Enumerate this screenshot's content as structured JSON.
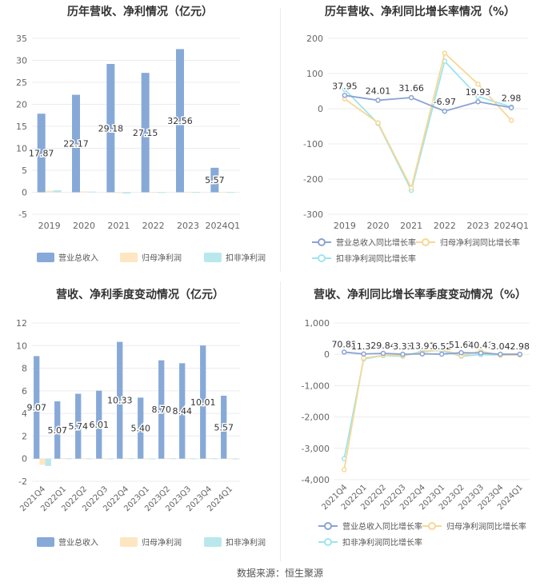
{
  "source": "数据来源：恒生聚源",
  "colors": {
    "revenue": "#87a9d7",
    "net_profit": "#fde6c1",
    "deducted": "#b9e8ec",
    "rev_line": "#8aa3d4",
    "np_line": "#f6d895",
    "ded_line": "#9ee5ee"
  },
  "chart_data": [
    {
      "type": "bar",
      "title": "历年营收、净利情况（亿元）",
      "categories": [
        "2019",
        "2020",
        "2021",
        "2022",
        "2023",
        "2024Q1"
      ],
      "ylim": [
        -5,
        35
      ],
      "yticks": [
        -5,
        0,
        5,
        10,
        15,
        20,
        25,
        30,
        35
      ],
      "series": [
        {
          "name": "营业总收入",
          "values": [
            17.87,
            22.17,
            29.18,
            27.15,
            32.56,
            5.57
          ],
          "labels": [
            "17.87",
            "22.17",
            "29.18",
            "27.15",
            "32.56",
            "5.57"
          ]
        },
        {
          "name": "归母净利润",
          "values": [
            0.35,
            0.2,
            -0.15,
            0.05,
            0.1,
            0.08
          ]
        },
        {
          "name": "扣非净利润",
          "values": [
            0.45,
            0.15,
            -0.3,
            0.03,
            0.05,
            0.06
          ]
        }
      ],
      "legend": "bottom"
    },
    {
      "type": "line",
      "title": "历年营收、净利同比增长率情况（%）",
      "categories": [
        "2019",
        "2020",
        "2021",
        "2022",
        "2023",
        "2024Q1"
      ],
      "ylim": [
        -300,
        200
      ],
      "yticks": [
        -300,
        -200,
        -100,
        0,
        100,
        200
      ],
      "series": [
        {
          "name": "营业总收入同比增长率",
          "values": [
            37.95,
            24.01,
            31.66,
            -6.97,
            19.93,
            2.98
          ],
          "labels": [
            "37.95",
            "24.01",
            "31.66",
            "-6.97",
            "19.93",
            "2.98"
          ]
        },
        {
          "name": "归母净利润同比增长率",
          "values": [
            28,
            -40,
            -225,
            158,
            70,
            -33
          ]
        },
        {
          "name": "扣非净利润同比增长率",
          "values": [
            55,
            -42,
            -232,
            135,
            35,
            5
          ]
        }
      ],
      "legend": "bottom"
    },
    {
      "type": "bar",
      "title": "营收、净利季度变动情况（亿元）",
      "categories": [
        "2021Q4",
        "2022Q1",
        "2022Q2",
        "2022Q3",
        "2022Q4",
        "2023Q1",
        "2023Q2",
        "2023Q3",
        "2023Q4",
        "2024Q1"
      ],
      "ylim": [
        -2,
        12
      ],
      "yticks": [
        -2,
        0,
        2,
        4,
        6,
        8,
        10,
        12
      ],
      "series": [
        {
          "name": "营业总收入",
          "values": [
            9.07,
            5.07,
            5.74,
            6.01,
            10.33,
            5.4,
            8.7,
            8.44,
            10.01,
            5.57
          ],
          "labels": [
            "9.07",
            "5.07",
            "5.74",
            "6.01",
            "10.33",
            "5.40",
            "8.70",
            "8.44",
            "10.01",
            "5.57"
          ]
        },
        {
          "name": "归母净利润",
          "values": [
            -0.55,
            0.05,
            0.03,
            0.02,
            0.06,
            0.02,
            0.04,
            0.03,
            0.05,
            0.02
          ]
        },
        {
          "name": "扣非净利润",
          "values": [
            -0.65,
            0.03,
            0.02,
            0.01,
            0.04,
            0.01,
            0.03,
            0.02,
            0.03,
            0.01
          ]
        }
      ],
      "legend": "bottom"
    },
    {
      "type": "line",
      "title": "营收、净利同比增长率季度变动情况（%）",
      "categories": [
        "2021Q4",
        "2022Q1",
        "2022Q2",
        "2022Q3",
        "2022Q4",
        "2023Q1",
        "2023Q2",
        "2023Q3",
        "2023Q4",
        "2024Q1"
      ],
      "ylim": [
        -4000,
        1000
      ],
      "yticks": [
        -4000,
        -3000,
        -2000,
        -1000,
        0,
        1000
      ],
      "yticklabels": [
        "-4,000",
        "-3,000",
        "-2,000",
        "-1,000",
        "0",
        "1,000"
      ],
      "series": [
        {
          "name": "营业总收入同比增长率",
          "values": [
            70.82,
            11.31,
            29.84,
            3.33,
            13.91,
            6.52,
            51.67,
            40.43,
            3.04,
            2.98
          ],
          "labels": [
            "70.82",
            "11.31",
            "29.84",
            "3.33",
            "13.91",
            "6.52",
            "51.67",
            "40.43",
            "3.04",
            "2.98"
          ]
        },
        {
          "name": "归母净利润同比增长率",
          "values": [
            -3680,
            -120,
            -30,
            -40,
            60,
            160,
            -40,
            100,
            -30,
            -20
          ]
        },
        {
          "name": "扣非净利润同比增长率",
          "values": [
            -3330,
            -150,
            -40,
            -60,
            100,
            120,
            -60,
            -10,
            -20,
            -10
          ]
        }
      ],
      "legend": "bottom"
    }
  ]
}
